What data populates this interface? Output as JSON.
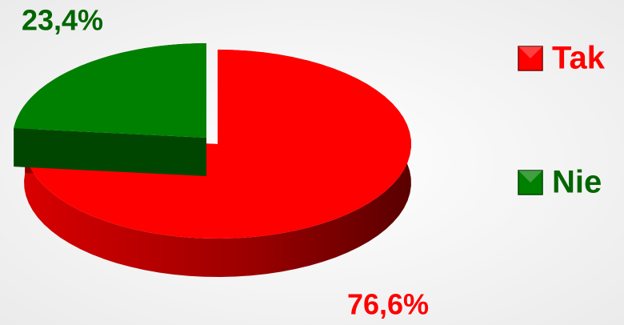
{
  "chart_data": {
    "type": "pie",
    "categories": [
      "Tak",
      "Nie"
    ],
    "values": [
      76.6,
      23.4
    ],
    "value_labels": [
      "76,6%",
      "23,4%"
    ],
    "colors": [
      "#ff0000",
      "#008000"
    ],
    "legend": "right"
  }
}
